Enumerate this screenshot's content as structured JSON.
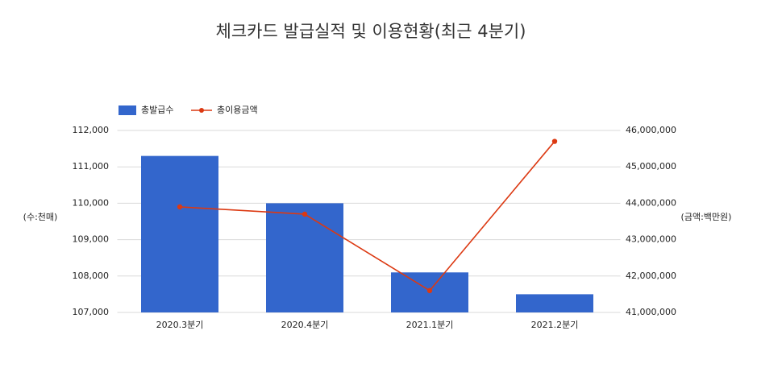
{
  "chart_data": {
    "type": "combo",
    "title": "체크카드 발급실적 및 이용현황(최근 4분기)",
    "y_label": "(수:천매)",
    "y2_label": "(금액:백만원)",
    "categories": [
      "2020.3분기",
      "2020.4분기",
      "2021.1분기",
      "2021.2분기"
    ],
    "series": [
      {
        "name": "총발급수",
        "type": "bar",
        "color": "#3366cc",
        "values": [
          111300,
          110000,
          108100,
          107500
        ]
      },
      {
        "name": "총이용금액",
        "type": "line",
        "color": "#dc3912",
        "axis": "y2",
        "values": [
          43900000,
          43700000,
          41600000,
          45700000
        ]
      }
    ],
    "ylim": [
      107000,
      112000
    ],
    "yticks": [
      {
        "value": 107000,
        "label": "107,000"
      },
      {
        "value": 108000,
        "label": "108,000"
      },
      {
        "value": 109000,
        "label": "109,000"
      },
      {
        "value": 110000,
        "label": "110,000"
      },
      {
        "value": 111000,
        "label": "111,000"
      },
      {
        "value": 112000,
        "label": "112,000"
      }
    ],
    "y2lim": [
      41000000,
      46000000
    ],
    "y2ticks": [
      {
        "value": 41000000,
        "label": "41,000,000"
      },
      {
        "value": 42000000,
        "label": "42,000,000"
      },
      {
        "value": 43000000,
        "label": "43,000,000"
      },
      {
        "value": 44000000,
        "label": "44,000,000"
      },
      {
        "value": 45000000,
        "label": "45,000,000"
      },
      {
        "value": 46000000,
        "label": "46,000,000"
      }
    ],
    "grid": true,
    "legend": "top-left"
  }
}
